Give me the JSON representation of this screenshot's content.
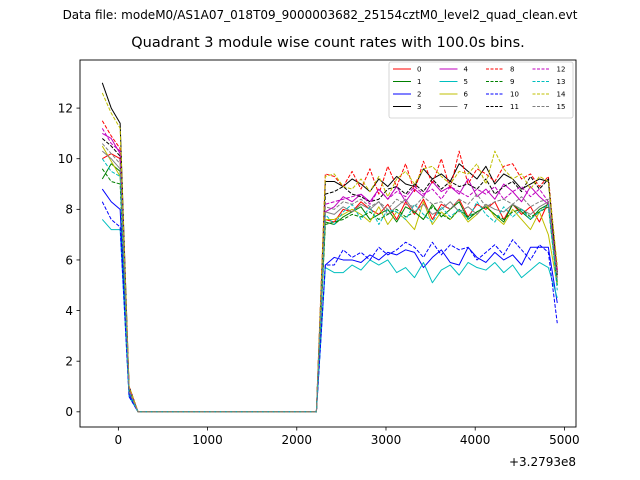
{
  "suptitle": "Data file: modeM0/AS1A07_018T09_9000003682_25154cztM0_level2_quad_clean.evt",
  "chart_data": {
    "type": "line",
    "title": "Quadrant 3 module wise count rates with 100.0s bins.",
    "xlabel": "",
    "ylabel": "",
    "x_offset_label": "+3.2793e8",
    "xlim": [
      -430,
      5130
    ],
    "ylim": [
      -0.6,
      13.9
    ],
    "xticks": [
      0,
      1000,
      2000,
      3000,
      4000,
      5000
    ],
    "yticks": [
      0,
      2,
      4,
      6,
      8,
      10,
      12
    ],
    "grid": false,
    "legend_position": "top-right",
    "legend_columns": 4,
    "x": [
      -180,
      -80,
      20,
      120,
      220,
      2220,
      2320,
      2420,
      2520,
      2620,
      2720,
      2820,
      2920,
      3020,
      3120,
      3220,
      3320,
      3420,
      3520,
      3620,
      3720,
      3820,
      3920,
      4020,
      4120,
      4220,
      4320,
      4420,
      4520,
      4620,
      4720,
      4820,
      4920
    ],
    "series": [
      {
        "name": "0",
        "color": "#ff0000",
        "dash": "solid",
        "values": [
          10.0,
          10.2,
          10.0,
          1.0,
          0,
          0,
          7.6,
          7.5,
          8.0,
          7.9,
          8.3,
          8.0,
          7.8,
          8.2,
          7.6,
          8.3,
          7.8,
          8.4,
          7.6,
          8.2,
          8.0,
          8.4,
          7.7,
          8.2,
          8.0,
          8.3,
          7.6,
          8.2,
          7.8,
          8.1,
          7.5,
          8.3,
          5.6
        ]
      },
      {
        "name": "1",
        "color": "#008000",
        "dash": "solid",
        "values": [
          9.2,
          9.8,
          9.5,
          0.8,
          0,
          0,
          7.5,
          7.4,
          7.7,
          7.9,
          8.1,
          7.6,
          7.8,
          8.0,
          7.5,
          8.1,
          7.9,
          7.6,
          8.2,
          7.7,
          8.0,
          8.3,
          7.6,
          7.9,
          8.1,
          7.8,
          7.5,
          8.2,
          7.9,
          7.6,
          8.0,
          8.2,
          5.1
        ]
      },
      {
        "name": "2",
        "color": "#0000ff",
        "dash": "solid",
        "values": [
          8.8,
          8.3,
          8.0,
          0.7,
          0,
          0,
          5.8,
          6.1,
          6.0,
          6.0,
          5.9,
          6.2,
          6.0,
          6.3,
          6.2,
          6.4,
          6.3,
          5.7,
          6.1,
          6.4,
          5.9,
          5.8,
          6.5,
          6.1,
          5.9,
          6.3,
          6.0,
          6.2,
          5.8,
          6.5,
          6.5,
          6.5,
          4.3
        ]
      },
      {
        "name": "3",
        "color": "#000000",
        "dash": "solid",
        "values": [
          13.0,
          12.0,
          11.4,
          1.0,
          0,
          0,
          9.1,
          9.1,
          8.9,
          9.2,
          9.0,
          8.7,
          9.2,
          8.9,
          9.3,
          9.0,
          8.9,
          9.6,
          9.2,
          9.4,
          9.1,
          9.8,
          9.5,
          9.2,
          9.7,
          9.0,
          9.4,
          9.2,
          8.8,
          9.0,
          9.2,
          9.1,
          5.5
        ]
      },
      {
        "name": "4",
        "color": "#bf00bf",
        "dash": "solid",
        "values": [
          11.0,
          10.8,
          10.2,
          0.9,
          0,
          0,
          7.9,
          8.1,
          8.5,
          8.3,
          8.6,
          8.3,
          8.8,
          8.4,
          8.9,
          8.3,
          8.8,
          8.5,
          9.1,
          8.7,
          8.9,
          8.6,
          9.2,
          8.5,
          8.8,
          8.4,
          9.0,
          8.7,
          8.3,
          8.9,
          8.5,
          8.2,
          5.3
        ]
      },
      {
        "name": "5",
        "color": "#00bfbf",
        "dash": "solid",
        "values": [
          7.6,
          7.2,
          7.2,
          0.6,
          0,
          0,
          5.7,
          5.5,
          5.5,
          5.8,
          5.6,
          6.0,
          5.8,
          6.0,
          5.5,
          5.7,
          5.3,
          5.9,
          5.1,
          5.6,
          5.8,
          5.4,
          5.9,
          5.7,
          5.6,
          5.9,
          5.5,
          5.8,
          5.3,
          5.6,
          5.9,
          5.7,
          4.5
        ]
      },
      {
        "name": "6",
        "color": "#bfbf00",
        "dash": "solid",
        "values": [
          10.5,
          9.9,
          9.3,
          0.9,
          0,
          0,
          7.6,
          7.6,
          7.8,
          8.0,
          7.8,
          7.5,
          8.1,
          7.4,
          7.9,
          7.6,
          7.2,
          8.3,
          7.4,
          7.9,
          7.6,
          8.0,
          7.5,
          7.8,
          8.2,
          7.7,
          7.4,
          8.0,
          7.6,
          7.2,
          7.9,
          7.0,
          5.0
        ]
      },
      {
        "name": "7",
        "color": "#808080",
        "dash": "solid",
        "values": [
          10.3,
          10.0,
          9.6,
          0.8,
          0,
          0,
          7.9,
          7.8,
          8.1,
          7.9,
          8.2,
          8.0,
          8.3,
          7.8,
          8.1,
          8.4,
          7.9,
          8.2,
          7.8,
          8.0,
          8.3,
          7.9,
          8.1,
          7.8,
          8.2,
          8.0,
          7.9,
          8.2,
          8.0,
          7.8,
          8.1,
          8.3,
          5.2
        ]
      },
      {
        "name": "8",
        "color": "#ff0000",
        "dash": "dashed",
        "values": [
          11.5,
          10.9,
          10.4,
          1.0,
          0,
          0,
          9.4,
          9.3,
          8.9,
          9.5,
          8.8,
          9.6,
          8.6,
          9.7,
          8.9,
          9.8,
          8.7,
          9.9,
          9.0,
          10.0,
          8.8,
          10.3,
          9.0,
          9.6,
          9.4,
          9.1,
          9.7,
          9.8,
          9.2,
          9.4,
          8.9,
          9.3,
          5.6
        ]
      },
      {
        "name": "9",
        "color": "#008000",
        "dash": "dashed",
        "values": [
          9.6,
          9.1,
          9.0,
          0.8,
          0,
          0,
          7.4,
          7.5,
          7.6,
          7.8,
          7.7,
          7.9,
          7.6,
          7.8,
          8.0,
          7.7,
          7.9,
          7.6,
          8.1,
          7.8,
          7.6,
          8.0,
          7.7,
          7.9,
          8.1,
          7.8,
          7.6,
          7.9,
          8.0,
          7.7,
          7.9,
          8.1,
          5.0
        ]
      },
      {
        "name": "10",
        "color": "#0000ff",
        "dash": "dashed",
        "values": [
          8.3,
          7.6,
          7.3,
          0.6,
          0,
          0,
          5.8,
          5.8,
          6.4,
          6.1,
          6.3,
          6.0,
          6.5,
          6.2,
          6.4,
          6.7,
          6.5,
          6.1,
          6.7,
          6.2,
          6.6,
          6.4,
          6.5,
          6.0,
          6.3,
          6.6,
          6.2,
          6.8,
          6.4,
          6.0,
          6.6,
          6.3,
          3.5
        ]
      },
      {
        "name": "11",
        "color": "#000000",
        "dash": "dashed",
        "values": [
          10.8,
          10.5,
          10.1,
          0.9,
          0,
          0,
          8.6,
          8.7,
          8.9,
          8.6,
          8.5,
          8.3,
          8.4,
          8.8,
          8.9,
          8.6,
          9.0,
          8.7,
          9.2,
          8.8,
          9.1,
          8.9,
          9.0,
          8.8,
          9.2,
          8.6,
          8.9,
          9.1,
          8.7,
          9.3,
          8.8,
          9.2,
          5.4
        ]
      },
      {
        "name": "12",
        "color": "#bf00bf",
        "dash": "dashed",
        "values": [
          11.2,
          10.6,
          10.3,
          0.9,
          0,
          0,
          8.2,
          8.3,
          8.4,
          8.5,
          8.6,
          8.2,
          8.8,
          8.4,
          8.7,
          8.5,
          8.9,
          8.6,
          8.8,
          8.4,
          8.9,
          8.7,
          8.5,
          8.8,
          8.6,
          8.9,
          8.4,
          8.7,
          8.9,
          8.5,
          8.8,
          8.3,
          5.5
        ]
      },
      {
        "name": "13",
        "color": "#00bfbf",
        "dash": "dashed",
        "values": [
          10.0,
          9.5,
          9.3,
          0.8,
          0,
          0,
          7.8,
          7.4,
          7.9,
          8.2,
          7.6,
          8.1,
          7.4,
          8.0,
          7.9,
          7.6,
          8.2,
          7.8,
          7.5,
          8.1,
          7.7,
          8.0,
          7.6,
          8.3,
          7.8,
          7.5,
          8.1,
          7.7,
          8.0,
          7.6,
          7.9,
          8.2,
          4.8
        ]
      },
      {
        "name": "14",
        "color": "#bfbf00",
        "dash": "dashed",
        "values": [
          12.6,
          11.8,
          11.2,
          1.0,
          0,
          0,
          9.3,
          9.4,
          8.9,
          8.8,
          9.2,
          8.7,
          9.3,
          8.5,
          9.2,
          9.5,
          9.0,
          9.6,
          9.7,
          9.3,
          9.0,
          9.5,
          9.4,
          9.8,
          9.0,
          10.3,
          9.6,
          9.2,
          9.4,
          8.8,
          9.3,
          9.1,
          5.8
        ]
      },
      {
        "name": "15",
        "color": "#808080",
        "dash": "dashed",
        "values": [
          10.6,
          10.2,
          9.8,
          0.8,
          0,
          0,
          8.1,
          8.0,
          8.3,
          8.2,
          8.4,
          8.1,
          8.3,
          8.0,
          8.4,
          8.2,
          8.1,
          8.5,
          8.2,
          8.3,
          8.0,
          8.4,
          8.2,
          8.6,
          8.1,
          8.3,
          8.4,
          8.2,
          8.5,
          8.1,
          8.3,
          8.4,
          5.3
        ]
      }
    ]
  }
}
